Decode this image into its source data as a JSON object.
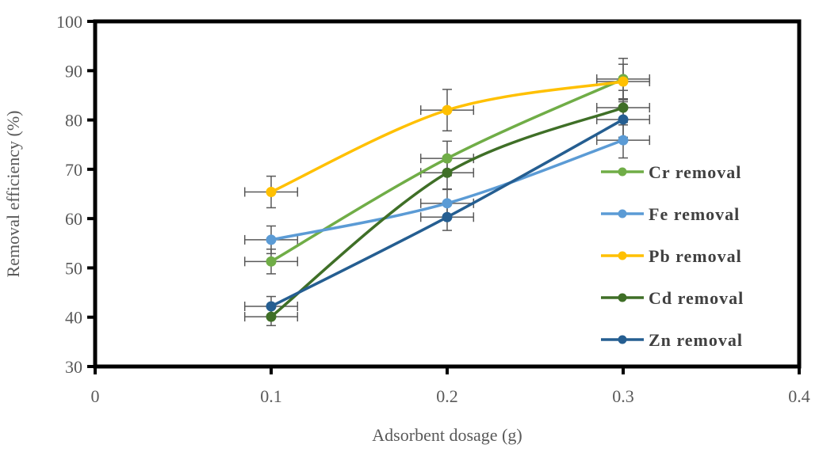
{
  "chart_data": {
    "type": "line",
    "title": "",
    "xlabel": "Adsorbent dosage (g)",
    "ylabel": "Removal efficiency (%)",
    "xlim": [
      0,
      0.4
    ],
    "ylim": [
      30,
      100
    ],
    "xticks": [
      0,
      0.1,
      0.2,
      0.3,
      0.4
    ],
    "xtick_labels": [
      "0",
      "0.1",
      "0.2",
      "0.3",
      "0.4"
    ],
    "yticks": [
      30,
      40,
      50,
      60,
      70,
      80,
      90,
      100
    ],
    "ytick_labels": [
      "30",
      "40",
      "50",
      "60",
      "70",
      "80",
      "90",
      "100"
    ],
    "grid": false,
    "legend_position": "right",
    "x": [
      0.1,
      0.2,
      0.3
    ],
    "x_error": 0.015,
    "series": [
      {
        "name": "Cr removal",
        "color": "#70ad47",
        "values": [
          51.3,
          72.2,
          88.3
        ],
        "errors": [
          2.5,
          3.5,
          4.2
        ]
      },
      {
        "name": "Fe removal",
        "color": "#5b9bd5",
        "values": [
          55.7,
          63.1,
          75.9
        ],
        "errors": [
          2.8,
          2.8,
          3.6
        ]
      },
      {
        "name": "Pb removal",
        "color": "#ffc000",
        "values": [
          65.4,
          82.0,
          87.8
        ],
        "errors": [
          3.2,
          4.2,
          3.5
        ]
      },
      {
        "name": "Cd removal",
        "color": "#3f6f27",
        "values": [
          40.1,
          69.3,
          82.5
        ],
        "errors": [
          1.8,
          3.3,
          3.5
        ]
      },
      {
        "name": "Zn removal",
        "color": "#255e91",
        "values": [
          42.2,
          60.3,
          80.1
        ],
        "errors": [
          2.0,
          2.7,
          3.6
        ]
      }
    ]
  }
}
